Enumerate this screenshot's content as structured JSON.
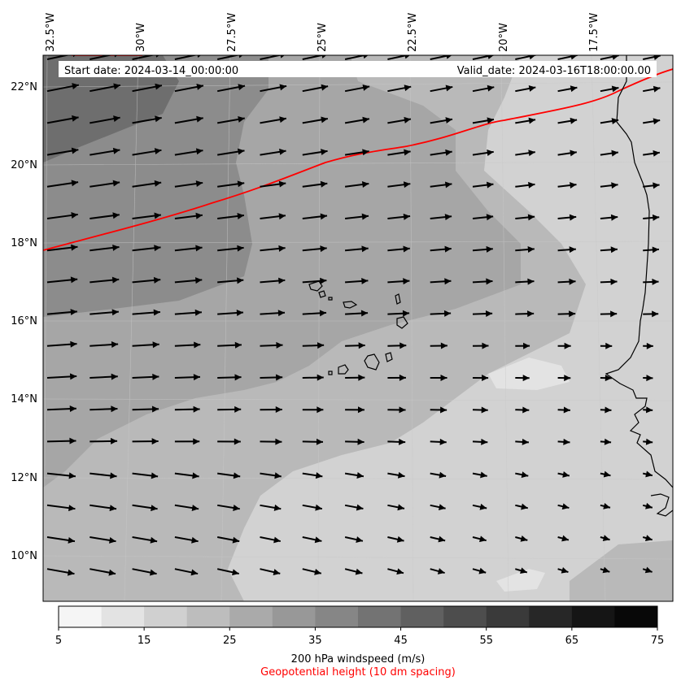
{
  "header": {
    "start_date": "Start date: 2024-03-14_00:00:00",
    "valid_date": "Valid_date: 2024-03-16T18:00:00.00"
  },
  "axes": {
    "longitude_labels": [
      "32.5°W",
      "30°W",
      "27.5°W",
      "25°W",
      "22.5°W",
      "20°W",
      "17.5°W"
    ],
    "latitude_labels": [
      "22°N",
      "20°N",
      "18°N",
      "16°N",
      "14°N",
      "12°N",
      "10°N"
    ]
  },
  "colorbar": {
    "ticks": [
      "5",
      "15",
      "25",
      "35",
      "45",
      "55",
      "65",
      "75"
    ],
    "bin_colors": [
      "#f5f5f5",
      "#e3e3e3",
      "#d0d0d0",
      "#bdbdbd",
      "#aaaaaa",
      "#989898",
      "#868686",
      "#737373",
      "#606060",
      "#4d4d4d",
      "#3a3a3a",
      "#272727",
      "#151515",
      "#080808"
    ],
    "label": "200 hPa windspeed (m/s)",
    "sublabel": "Geopotential height (10 dm spacing)"
  },
  "colors": {
    "contour_line": "#ff0000",
    "coastline": "#000000",
    "wind_arrow": "#000000"
  }
}
